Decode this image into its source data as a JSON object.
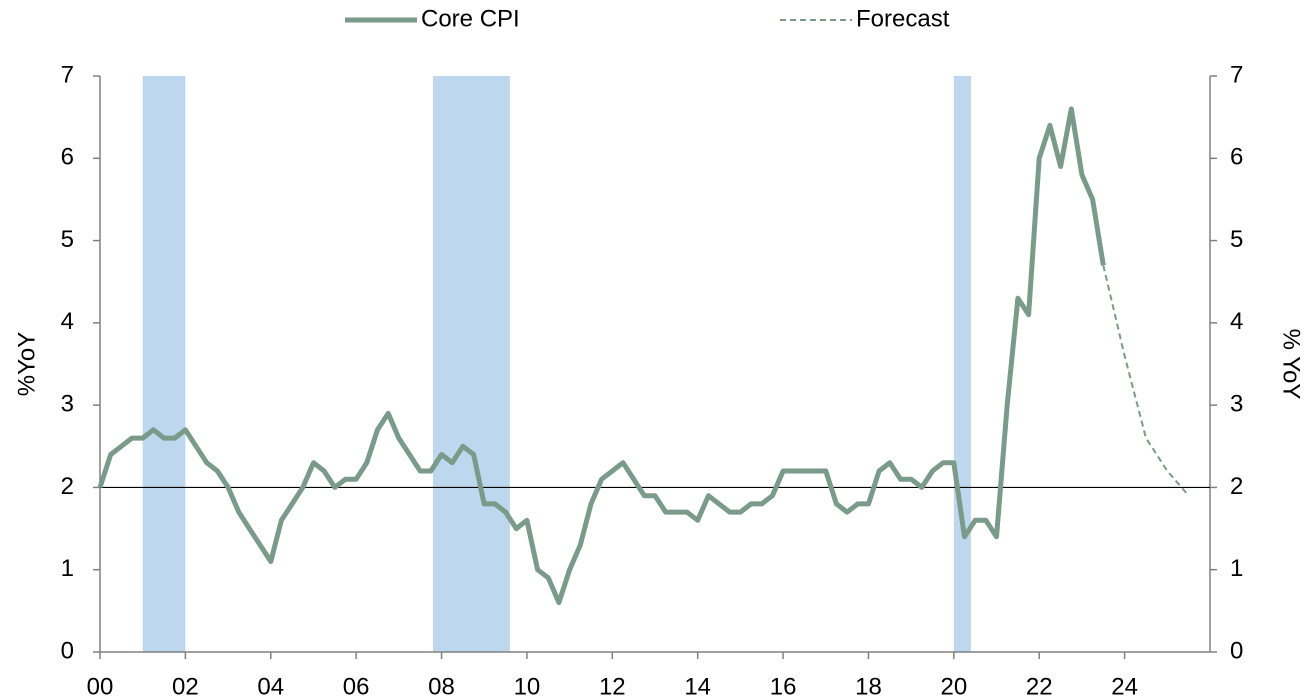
{
  "chart_data": {
    "type": "line",
    "ylabel": "%YoY",
    "y2label": "% YoY",
    "xlim": [
      2000,
      2026
    ],
    "xticks": [
      {
        "value": 2000,
        "label": "00"
      },
      {
        "value": 2002,
        "label": "02"
      },
      {
        "value": 2004,
        "label": "04"
      },
      {
        "value": 2006,
        "label": "06"
      },
      {
        "value": 2008,
        "label": "08"
      },
      {
        "value": 2010,
        "label": "10"
      },
      {
        "value": 2012,
        "label": "12"
      },
      {
        "value": 2014,
        "label": "14"
      },
      {
        "value": 2016,
        "label": "16"
      },
      {
        "value": 2018,
        "label": "18"
      },
      {
        "value": 2020,
        "label": "20"
      },
      {
        "value": 2022,
        "label": "22"
      },
      {
        "value": 2024,
        "label": "24"
      }
    ],
    "ylim": [
      0,
      7
    ],
    "yticks": [
      0,
      1,
      2,
      3,
      4,
      5,
      6,
      7
    ],
    "y2lim": [
      0,
      7
    ],
    "y2ticks": [
      0,
      1,
      2,
      3,
      4,
      5,
      6,
      7
    ],
    "reference_line": 2,
    "recessions": [
      [
        2001.0,
        2002.0
      ],
      [
        2007.8,
        2009.6
      ],
      [
        2020.0,
        2020.4
      ]
    ],
    "recession_color": "#bdd7ee",
    "series": [
      {
        "name": "Core CPI",
        "color": "#7a9a8a",
        "style": "solid",
        "x": [
          2000,
          2000.25,
          2000.5,
          2000.75,
          2001,
          2001.25,
          2001.5,
          2001.75,
          2002,
          2002.25,
          2002.5,
          2002.75,
          2003,
          2003.25,
          2003.5,
          2003.75,
          2004,
          2004.25,
          2004.5,
          2004.75,
          2005,
          2005.25,
          2005.5,
          2005.75,
          2006,
          2006.25,
          2006.5,
          2006.75,
          2007,
          2007.25,
          2007.5,
          2007.75,
          2008,
          2008.25,
          2008.5,
          2008.75,
          2009,
          2009.25,
          2009.5,
          2009.75,
          2010,
          2010.25,
          2010.5,
          2010.75,
          2011,
          2011.25,
          2011.5,
          2011.75,
          2012,
          2012.25,
          2012.5,
          2012.75,
          2013,
          2013.25,
          2013.5,
          2013.75,
          2014,
          2014.25,
          2014.5,
          2014.75,
          2015,
          2015.25,
          2015.5,
          2015.75,
          2016,
          2016.25,
          2016.5,
          2016.75,
          2017,
          2017.25,
          2017.5,
          2017.75,
          2018,
          2018.25,
          2018.5,
          2018.75,
          2019,
          2019.25,
          2019.5,
          2019.75,
          2020,
          2020.25,
          2020.5,
          2020.75,
          2021,
          2021.25,
          2021.5,
          2021.75,
          2022,
          2022.25,
          2022.5,
          2022.75,
          2023,
          2023.25,
          2023.5
        ],
        "values": [
          2.0,
          2.4,
          2.5,
          2.6,
          2.6,
          2.7,
          2.6,
          2.6,
          2.7,
          2.5,
          2.3,
          2.2,
          2.0,
          1.7,
          1.5,
          1.3,
          1.1,
          1.6,
          1.8,
          2.0,
          2.3,
          2.2,
          2.0,
          2.1,
          2.1,
          2.3,
          2.7,
          2.9,
          2.6,
          2.4,
          2.2,
          2.2,
          2.4,
          2.3,
          2.5,
          2.4,
          1.8,
          1.8,
          1.7,
          1.5,
          1.6,
          1.0,
          0.9,
          0.6,
          1.0,
          1.3,
          1.8,
          2.1,
          2.2,
          2.3,
          2.1,
          1.9,
          1.9,
          1.7,
          1.7,
          1.7,
          1.6,
          1.9,
          1.8,
          1.7,
          1.7,
          1.8,
          1.8,
          1.9,
          2.2,
          2.2,
          2.2,
          2.2,
          2.2,
          1.8,
          1.7,
          1.8,
          1.8,
          2.2,
          2.3,
          2.1,
          2.1,
          2.0,
          2.2,
          2.3,
          2.3,
          1.4,
          1.6,
          1.6,
          1.4,
          3.0,
          4.3,
          4.1,
          6.0,
          6.4,
          5.9,
          6.6,
          5.8,
          5.5,
          4.7
        ]
      },
      {
        "name": "Forecast",
        "color": "#7a9a8a",
        "style": "dashed",
        "x": [
          2023.5,
          2024,
          2024.5,
          2025,
          2025.5
        ],
        "values": [
          4.7,
          3.6,
          2.6,
          2.2,
          1.9
        ]
      }
    ]
  }
}
